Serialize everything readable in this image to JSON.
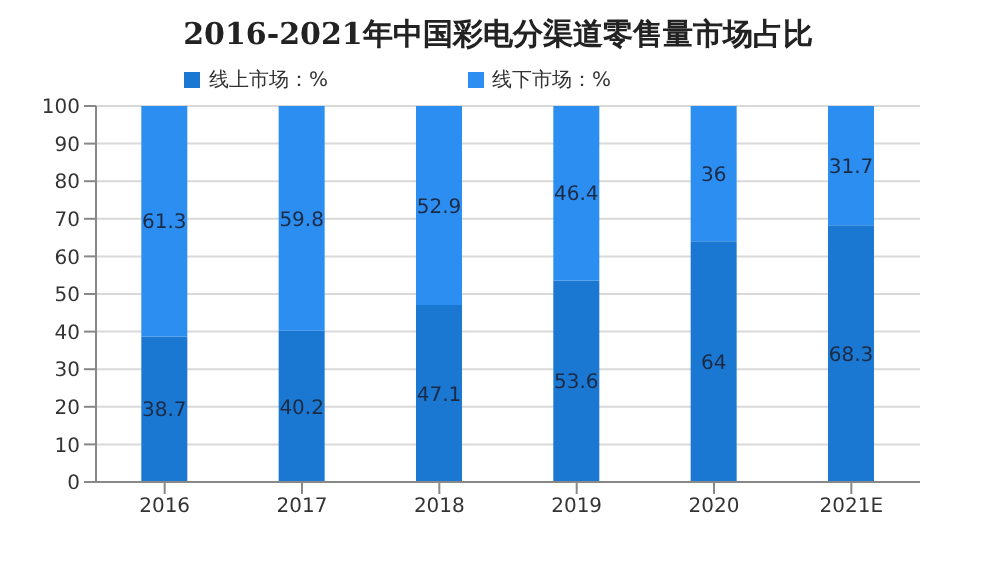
{
  "chart_data": {
    "type": "bar",
    "title": "2016-2021年中国彩电分渠道零售量市场占比",
    "categories": [
      "2016",
      "2017",
      "2018",
      "2019",
      "2020",
      "2021E"
    ],
    "stacked": true,
    "series": [
      {
        "name": "线上市场：%",
        "color": "#1a78d2",
        "values": [
          38.7,
          40.2,
          47.1,
          53.6,
          64,
          68.3
        ]
      },
      {
        "name": "线下市场：%",
        "color": "#2b8ef0",
        "values": [
          61.3,
          59.8,
          52.9,
          46.4,
          36,
          31.7
        ]
      }
    ],
    "ylim": [
      0,
      100
    ],
    "yticks": [
      0,
      10,
      20,
      30,
      40,
      50,
      60,
      70,
      80,
      90,
      100
    ],
    "grid": "y",
    "legend": "top",
    "data_labels": true
  }
}
